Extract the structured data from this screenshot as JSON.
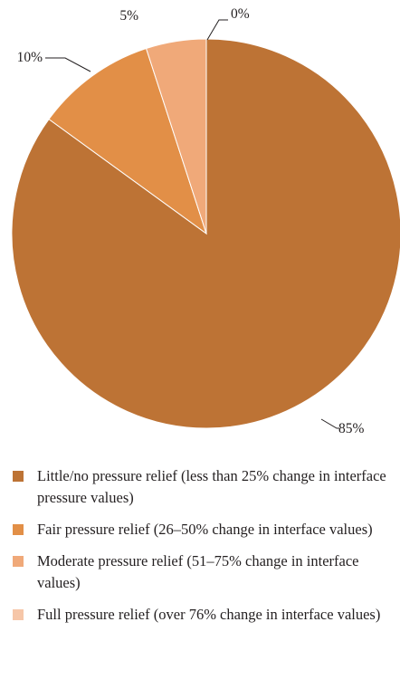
{
  "chart_data": {
    "type": "pie",
    "slices": [
      {
        "label": "Little/no pressure relief (less than 25% change in interface pressure values)",
        "value": 85,
        "value_label": "85%",
        "color": "#bd7335"
      },
      {
        "label": "Fair pressure relief (26–50% change in interface values)",
        "value": 10,
        "value_label": "10%",
        "color": "#e28f47"
      },
      {
        "label": "Moderate pressure relief (51–75% change in interface values)",
        "value": 5,
        "value_label": "5%",
        "color": "#f0a979"
      },
      {
        "label": "Full pressure relief (over 76% change in interface values)",
        "value": 0,
        "value_label": "0%",
        "color": "#f6c6a8"
      }
    ]
  }
}
